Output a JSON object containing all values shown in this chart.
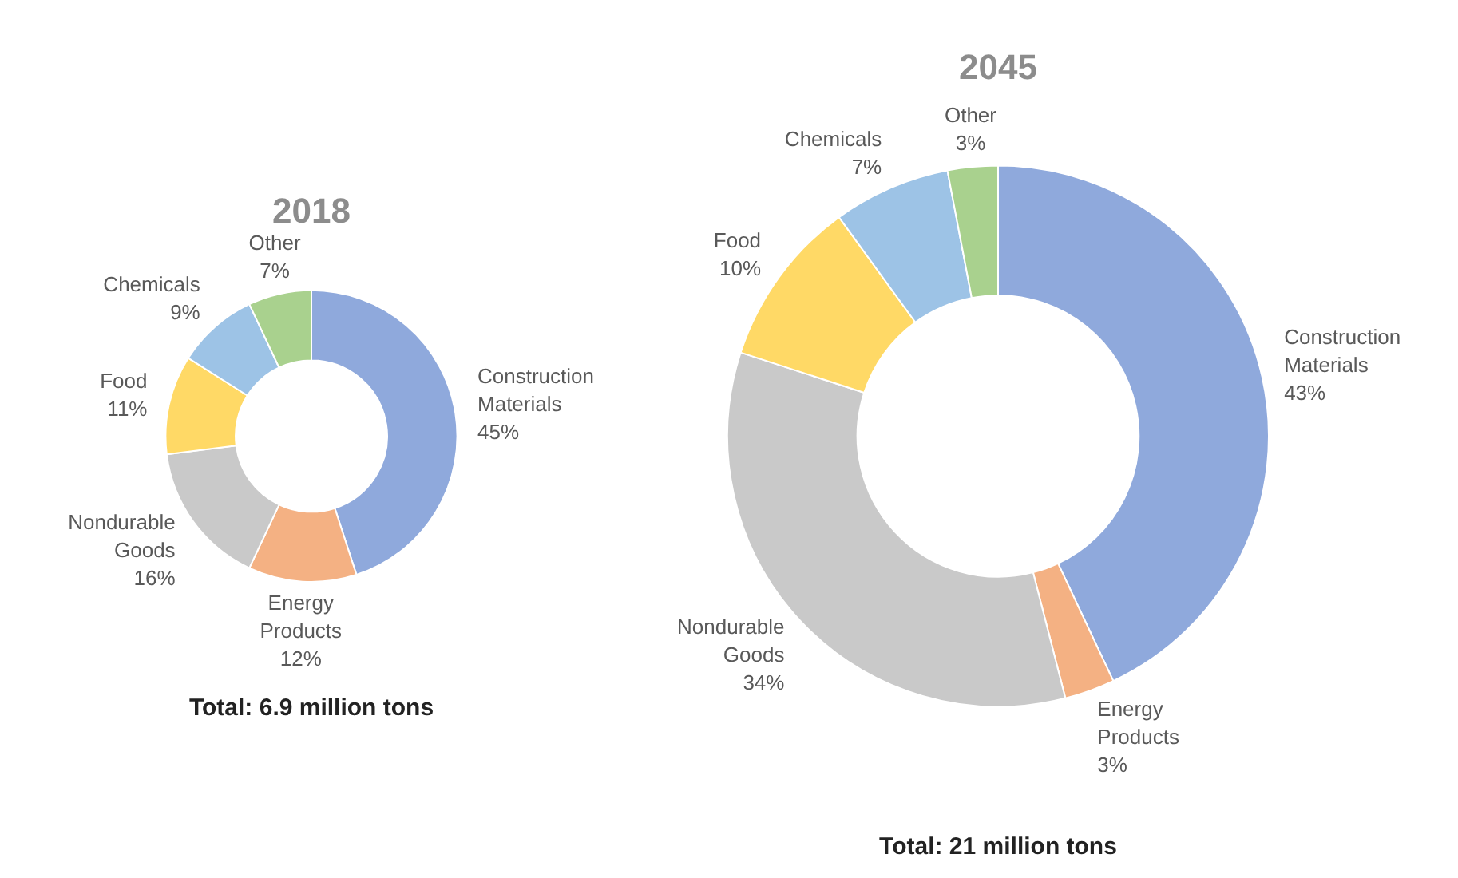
{
  "chart_data": [
    {
      "type": "donut",
      "title": "2018",
      "categories": [
        "Construction Materials",
        "Energy Products",
        "Nondurable Goods",
        "Food",
        "Chemicals",
        "Other"
      ],
      "values": [
        45,
        12,
        16,
        11,
        9,
        7
      ],
      "value_labels": [
        "45%",
        "12%",
        "16%",
        "11%",
        "9%",
        "7%"
      ],
      "colors": [
        "#8fa9dc",
        "#f4b183",
        "#c9c9c9",
        "#ffd966",
        "#9dc3e6",
        "#a9d18e"
      ],
      "annotations": [
        "Total: 6.9 million tons"
      ]
    },
    {
      "type": "donut",
      "title": "2045",
      "categories": [
        "Construction Materials",
        "Energy Products",
        "Nondurable Goods",
        "Food",
        "Chemicals",
        "Other"
      ],
      "values": [
        43,
        3,
        34,
        10,
        7,
        3
      ],
      "value_labels": [
        "43%",
        "3%",
        "34%",
        "10%",
        "7%",
        "3%"
      ],
      "colors": [
        "#8fa9dc",
        "#f4b183",
        "#c9c9c9",
        "#ffd966",
        "#9dc3e6",
        "#a9d18e"
      ],
      "annotations": [
        "Total: 21 million tons"
      ]
    }
  ]
}
